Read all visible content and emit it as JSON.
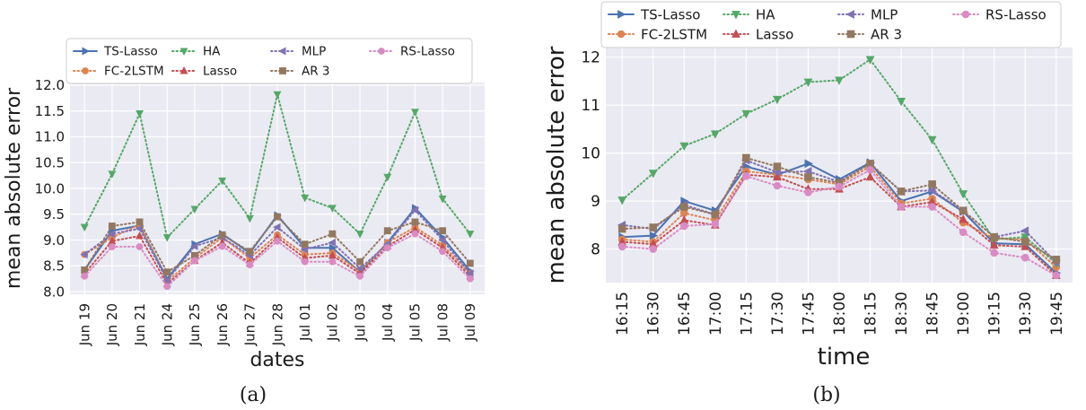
{
  "chart_data": [
    {
      "type": "line",
      "caption": "(a)",
      "xlabel": "dates",
      "ylabel": "mean absolute error",
      "ylim": [
        7.95,
        12.05
      ],
      "yticks": [
        "8.0",
        "8.5",
        "9.0",
        "9.5",
        "10.0",
        "10.5",
        "11.0",
        "11.5",
        "12.0"
      ],
      "grid": true,
      "legend_position": "top",
      "categories": [
        "Jun 19",
        "Jun 20",
        "Jun 21",
        "Jun 24",
        "Jun 25",
        "Jun 26",
        "Jun 27",
        "Jun 28",
        "Jul 01",
        "Jul 02",
        "Jul 03",
        "Jul 04",
        "Jul 05",
        "Jul 08",
        "Jul 09"
      ],
      "series": [
        {
          "name": "TS-Lasso",
          "color": "#4c72b0",
          "style": "solid",
          "marker": "triangle-right",
          "values": [
            8.42,
            9.18,
            9.28,
            8.25,
            8.92,
            9.12,
            8.75,
            9.48,
            8.85,
            8.85,
            8.38,
            8.95,
            9.62,
            9.05,
            8.4
          ]
        },
        {
          "name": "FC-2LSTM",
          "color": "#dd8452",
          "style": "dotted",
          "marker": "circle",
          "values": [
            8.72,
            9.05,
            9.3,
            8.2,
            8.65,
            9.05,
            8.65,
            9.1,
            8.72,
            8.75,
            8.4,
            8.95,
            9.25,
            8.9,
            8.35
          ]
        },
        {
          "name": "HA",
          "color": "#55a868",
          "style": "dotted",
          "marker": "triangle-down",
          "values": [
            9.25,
            10.28,
            11.45,
            9.05,
            9.6,
            10.15,
            9.42,
            11.82,
            9.82,
            9.62,
            9.12,
            10.22,
            11.48,
            9.8,
            9.12
          ]
        },
        {
          "name": "Lasso",
          "color": "#c44e52",
          "style": "dotted",
          "marker": "triangle-up",
          "values": [
            8.35,
            8.98,
            9.08,
            8.15,
            8.6,
            8.95,
            8.55,
            9.05,
            8.65,
            8.7,
            8.35,
            8.88,
            9.2,
            8.85,
            8.3
          ]
        },
        {
          "name": "MLP",
          "color": "#8172b3",
          "style": "dotted",
          "marker": "triangle-left",
          "values": [
            8.72,
            9.12,
            9.22,
            8.22,
            8.88,
            9.05,
            8.7,
            9.25,
            8.82,
            8.95,
            8.45,
            8.92,
            9.58,
            9.0,
            8.35
          ]
        },
        {
          "name": "AR 3",
          "color": "#937860",
          "style": "dotted",
          "marker": "square",
          "values": [
            8.42,
            9.27,
            9.35,
            8.38,
            8.7,
            9.1,
            8.78,
            9.45,
            8.92,
            9.12,
            8.58,
            9.18,
            9.35,
            9.18,
            8.55
          ]
        },
        {
          "name": "RS-Lasso",
          "color": "#da8bc3",
          "style": "dotted",
          "marker": "circle",
          "values": [
            8.3,
            8.87,
            8.87,
            8.1,
            8.6,
            8.88,
            8.52,
            8.98,
            8.58,
            8.58,
            8.3,
            8.85,
            9.12,
            8.78,
            8.25
          ]
        }
      ]
    },
    {
      "type": "line",
      "caption": "(b)",
      "xlabel": "time",
      "ylabel": "mean absolute error",
      "ylim": [
        7.3,
        12.2
      ],
      "yticks": [
        "8",
        "9",
        "10",
        "11",
        "12"
      ],
      "grid": true,
      "legend_position": "top",
      "categories": [
        "16:15",
        "16:30",
        "16:45",
        "17:00",
        "17:15",
        "17:30",
        "17:45",
        "18:00",
        "18:15",
        "18:30",
        "18:45",
        "19:00",
        "19:15",
        "19:30",
        "19:45"
      ],
      "series": [
        {
          "name": "TS-Lasso",
          "color": "#4c72b0",
          "style": "solid",
          "marker": "triangle-right",
          "values": [
            8.25,
            8.28,
            9.0,
            8.8,
            9.72,
            9.55,
            9.78,
            9.45,
            9.8,
            9.0,
            9.2,
            8.78,
            8.12,
            8.1,
            7.5
          ]
        },
        {
          "name": "FC-2LSTM",
          "color": "#dd8452",
          "style": "dotted",
          "marker": "circle",
          "values": [
            8.2,
            8.15,
            8.75,
            8.6,
            9.62,
            9.55,
            9.45,
            9.35,
            9.72,
            8.95,
            9.05,
            8.55,
            8.22,
            8.2,
            7.62
          ]
        },
        {
          "name": "HA",
          "color": "#55a868",
          "style": "dotted",
          "marker": "triangle-down",
          "values": [
            9.02,
            9.58,
            10.15,
            10.4,
            10.82,
            11.12,
            11.48,
            11.52,
            11.95,
            11.08,
            10.28,
            9.15,
            8.2,
            8.25,
            7.7
          ]
        },
        {
          "name": "Lasso",
          "color": "#c44e52",
          "style": "dotted",
          "marker": "triangle-up",
          "values": [
            8.15,
            8.1,
            8.6,
            8.5,
            9.55,
            9.5,
            9.25,
            9.25,
            9.5,
            8.88,
            8.98,
            8.62,
            8.08,
            8.05,
            7.45
          ]
        },
        {
          "name": "MLP",
          "color": "#8172b3",
          "style": "dotted",
          "marker": "triangle-left",
          "values": [
            8.5,
            8.42,
            8.92,
            8.72,
            9.85,
            9.6,
            9.62,
            9.4,
            9.78,
            9.2,
            9.22,
            8.8,
            8.25,
            8.38,
            7.72
          ]
        },
        {
          "name": "AR 3",
          "color": "#937860",
          "style": "dotted",
          "marker": "square",
          "values": [
            8.42,
            8.45,
            8.88,
            8.72,
            9.9,
            9.72,
            9.5,
            9.38,
            9.78,
            9.2,
            9.35,
            8.8,
            8.25,
            8.15,
            7.78
          ]
        },
        {
          "name": "RS-Lasso",
          "color": "#da8bc3",
          "style": "dotted",
          "marker": "circle",
          "values": [
            8.05,
            8.0,
            8.48,
            8.52,
            9.52,
            9.32,
            9.18,
            9.3,
            9.65,
            8.88,
            8.88,
            8.35,
            7.92,
            7.82,
            7.45
          ]
        }
      ]
    }
  ]
}
